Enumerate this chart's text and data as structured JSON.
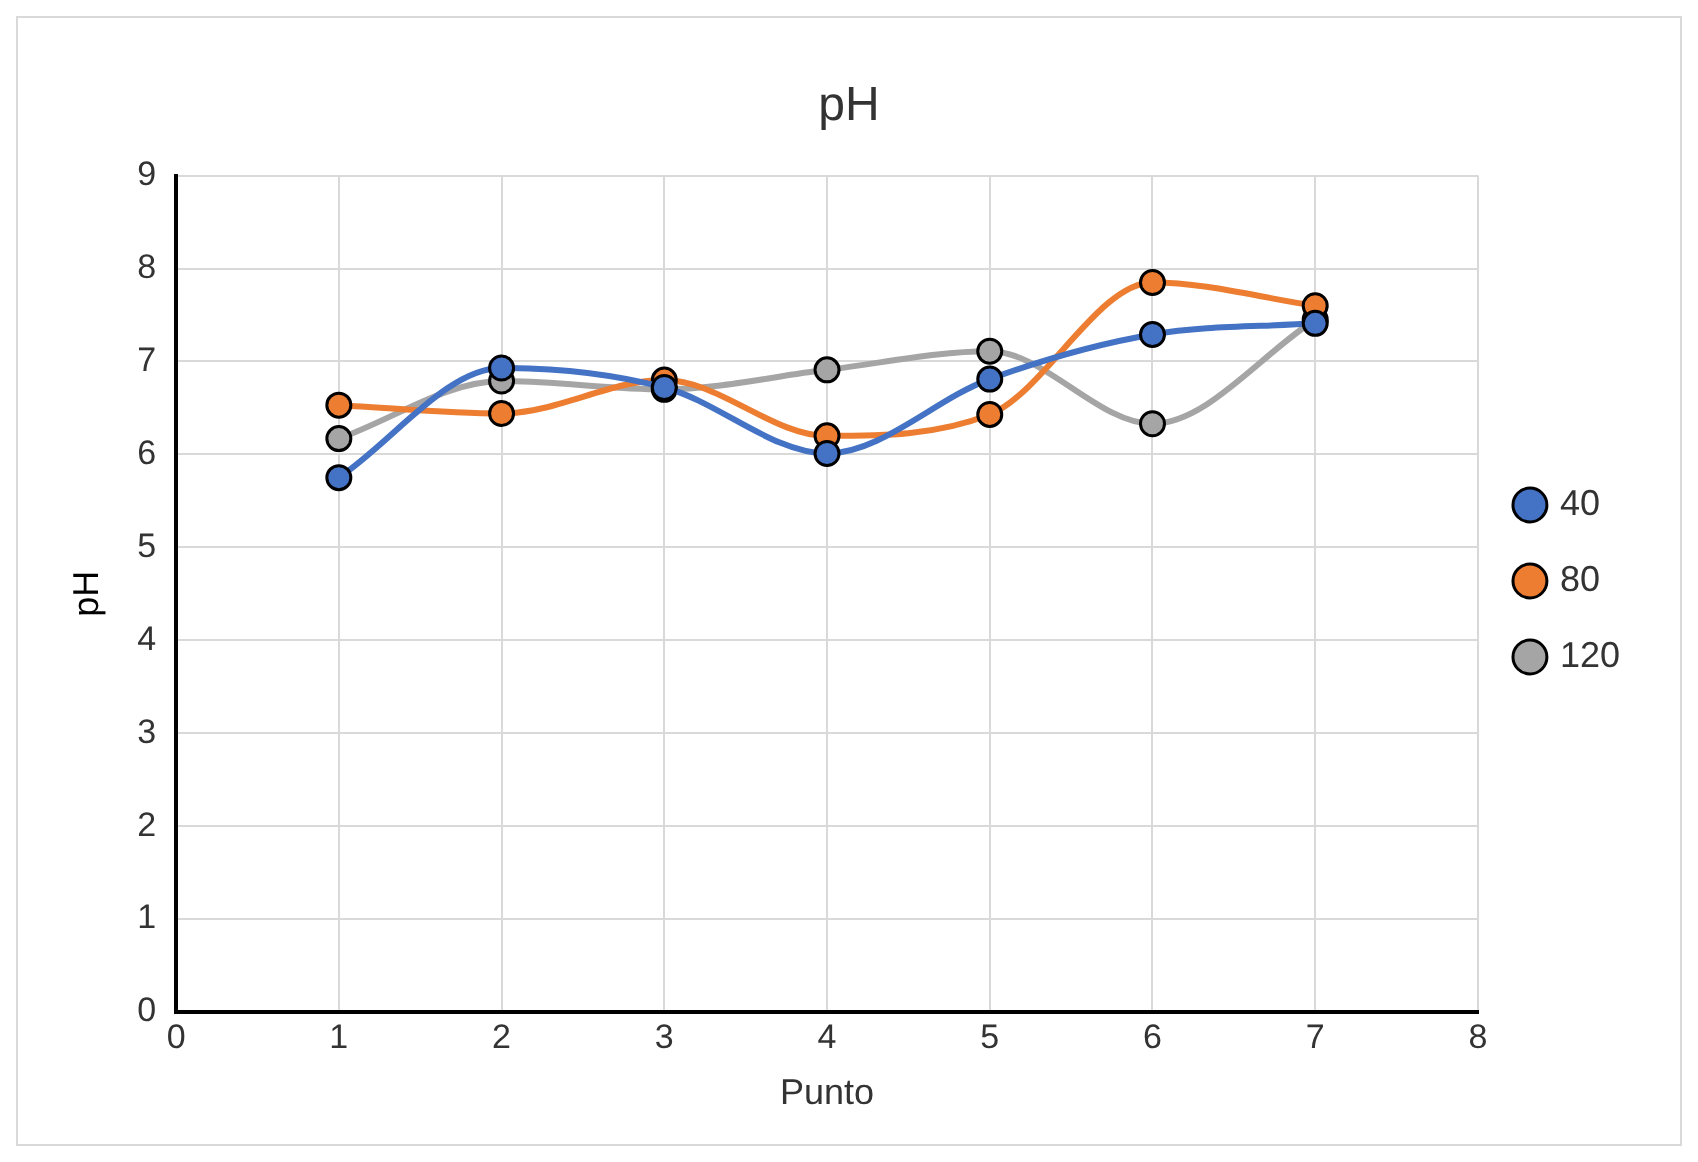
{
  "chart_data": {
    "type": "line",
    "title": "pH",
    "xlabel": "Punto",
    "ylabel": "pH",
    "x": [
      1,
      2,
      3,
      4,
      5,
      6,
      7
    ],
    "series": [
      {
        "name": "40",
        "color": "#4472c4",
        "values": [
          5.75,
          6.93,
          6.72,
          6.01,
          6.81,
          7.29,
          7.41
        ]
      },
      {
        "name": "80",
        "color": "#ed7d31",
        "values": [
          6.53,
          6.44,
          6.8,
          6.2,
          6.43,
          7.85,
          7.6
        ]
      },
      {
        "name": "120",
        "color": "#a5a5a5",
        "values": [
          6.17,
          6.79,
          6.7,
          6.91,
          7.11,
          6.33,
          7.45
        ]
      }
    ],
    "xlim": [
      0,
      8
    ],
    "xticks": [
      0,
      1,
      2,
      3,
      4,
      5,
      6,
      7,
      8
    ],
    "ylim": [
      0,
      9
    ],
    "yticks": [
      0,
      1,
      2,
      3,
      4,
      5,
      6,
      7,
      8,
      9
    ],
    "grid": true,
    "legend": "right",
    "marker": "circle",
    "line_style": "solid"
  }
}
